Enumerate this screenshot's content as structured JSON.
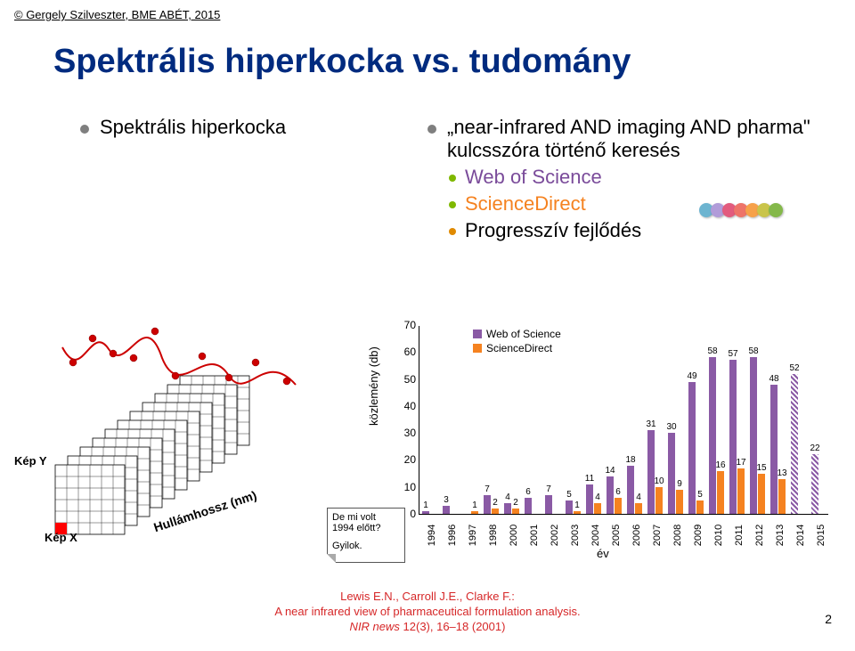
{
  "header": "© Gergely Szilveszter, BME ABÉT, 2015",
  "title": "Spektrális hiperkocka vs. tudomány",
  "left_bullet": "Spektrális hiperkocka",
  "right": {
    "line1": "„near-infrared AND imaging AND pharma\" kulcsszóra történő keresés",
    "sub1": "Web of Science",
    "sub2": "ScienceDirect",
    "line2": "Progresszív fejlődés"
  },
  "wos_palette": [
    "#6db4d0",
    "#b19cd9",
    "#e25b7e",
    "#ee7469",
    "#f6a14a",
    "#c9c44a",
    "#84b84a"
  ],
  "hypercube": {
    "kepY": "Kép Y",
    "kepX": "Kép X",
    "hullam": "Hullámhossz (nm)"
  },
  "note": {
    "l1": "De mi volt",
    "l2": "1994 előtt?",
    "l3": "Gyilok."
  },
  "chart": {
    "ylab": "közlemény (db)",
    "xlab": "év",
    "ymax": 70,
    "yticks": [
      0,
      10,
      20,
      30,
      40,
      50,
      60,
      70
    ],
    "legend": [
      "Web of Science",
      "ScienceDirect"
    ],
    "colors": {
      "wos": "#8a5aa5",
      "sd": "#f58220"
    },
    "years": [
      "1994",
      "1996",
      "1997",
      "1998",
      "2000",
      "2001",
      "2002",
      "2003",
      "2004",
      "2005",
      "2006",
      "2007",
      "2008",
      "2009",
      "2010",
      "2011",
      "2012",
      "2013",
      "2014",
      "2015"
    ],
    "wos_vals": [
      1,
      3,
      null,
      7,
      4,
      6,
      7,
      5,
      11,
      14,
      18,
      31,
      30,
      49,
      58,
      57,
      58,
      48,
      52,
      22
    ],
    "sd_vals": [
      null,
      null,
      1,
      2,
      2,
      null,
      null,
      1,
      4,
      6,
      4,
      10,
      9,
      5,
      16,
      17,
      15,
      13,
      null,
      null
    ],
    "hatched_last": 2
  },
  "cite": {
    "authors": "Lewis E.N., Carroll J.E., Clarke F.:",
    "line2": "A near infrared view of pharmaceutical formulation analysis.",
    "line3_pre": "NIR news",
    "line3_post": " 12(3), 16–18 (2001)"
  },
  "page": "2"
}
